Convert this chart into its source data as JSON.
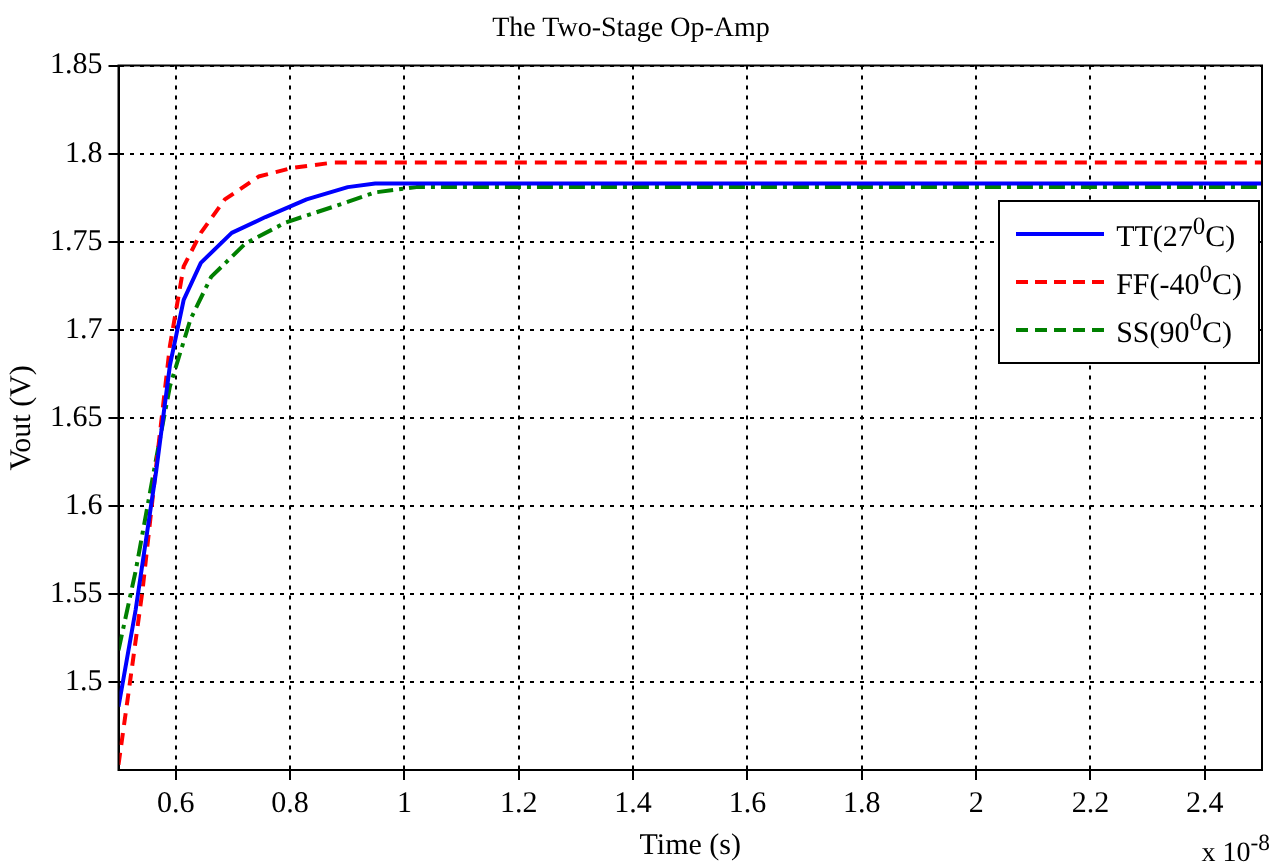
{
  "chart_data": {
    "type": "line",
    "title": "The Two-Stage Op-Amp",
    "xlabel": "Time (s)",
    "ylabel": "Vout (V)",
    "xlim": [
      0.5,
      2.5
    ],
    "xticks": [
      0.6,
      0.8,
      1,
      1.2,
      1.4,
      1.6,
      1.8,
      2,
      2.2,
      2.4
    ],
    "ylim": [
      1.45,
      1.85
    ],
    "yticks": [
      1.5,
      1.55,
      1.6,
      1.65,
      1.7,
      1.75,
      1.8,
      1.85
    ],
    "grid": true,
    "legend": "right",
    "marker": "none",
    "annotations": [
      "x 10$^{-8}$"
    ],
    "series": [
      {
        "name": "TT(27$^{0}$C)",
        "color": "#0000ff",
        "line_style": "solid",
        "x": [
          0.5,
          0.53,
          0.566,
          0.59,
          0.614,
          0.644,
          0.698,
          0.757,
          0.829,
          0.901,
          0.949,
          2.5
        ],
        "values": [
          1.486,
          1.541,
          1.62,
          1.68,
          1.717,
          1.738,
          1.755,
          1.764,
          1.774,
          1.781,
          1.783,
          1.783
        ]
      },
      {
        "name": "FF(-40$^{0}$C)",
        "color": "#ff0000",
        "line_style": "dashed",
        "x": [
          0.5,
          0.518,
          0.542,
          0.566,
          0.59,
          0.614,
          0.644,
          0.686,
          0.745,
          0.805,
          0.877,
          2.5
        ],
        "values": [
          1.453,
          1.495,
          1.552,
          1.623,
          1.691,
          1.736,
          1.755,
          1.774,
          1.787,
          1.792,
          1.795,
          1.795
        ]
      },
      {
        "name": "SS(90$^{0}$C)",
        "color": "#008000",
        "line_style": "dashdot",
        "x": [
          0.5,
          0.53,
          0.566,
          0.59,
          0.626,
          0.662,
          0.722,
          0.793,
          0.877,
          0.949,
          1.021,
          2.5
        ],
        "values": [
          1.518,
          1.563,
          1.627,
          1.668,
          1.706,
          1.73,
          1.749,
          1.761,
          1.77,
          1.778,
          1.781,
          1.781
        ]
      }
    ]
  }
}
